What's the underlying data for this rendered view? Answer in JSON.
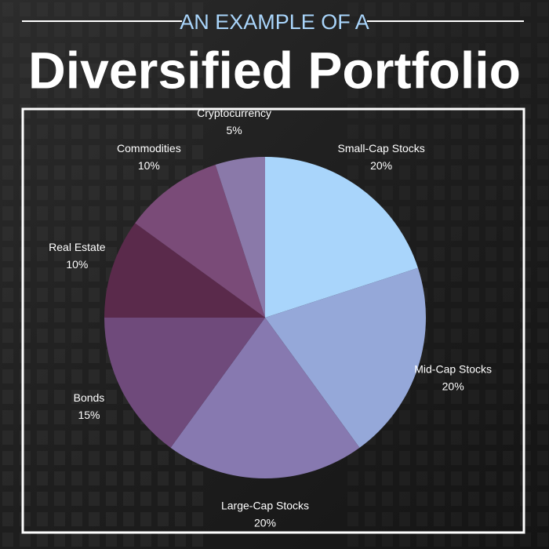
{
  "chart_data": {
    "type": "pie",
    "subtitle": "AN EXAMPLE OF A",
    "title": "Diversified Portfolio",
    "categories": [
      "Small-Cap Stocks",
      "Mid-Cap Stocks",
      "Large-Cap Stocks",
      "Bonds",
      "Real Estate",
      "Commodities",
      "Cryptocurrency"
    ],
    "values": [
      20,
      20,
      20,
      15,
      10,
      10,
      5
    ],
    "value_labels": [
      "20%",
      "20%",
      "20%",
      "15%",
      "10%",
      "10%",
      "5%"
    ],
    "colors": [
      "#a9d5fb",
      "#95a8d9",
      "#8779b0",
      "#6f4a7b",
      "#5a2a4b",
      "#7a4b78",
      "#8a79a9"
    ]
  }
}
